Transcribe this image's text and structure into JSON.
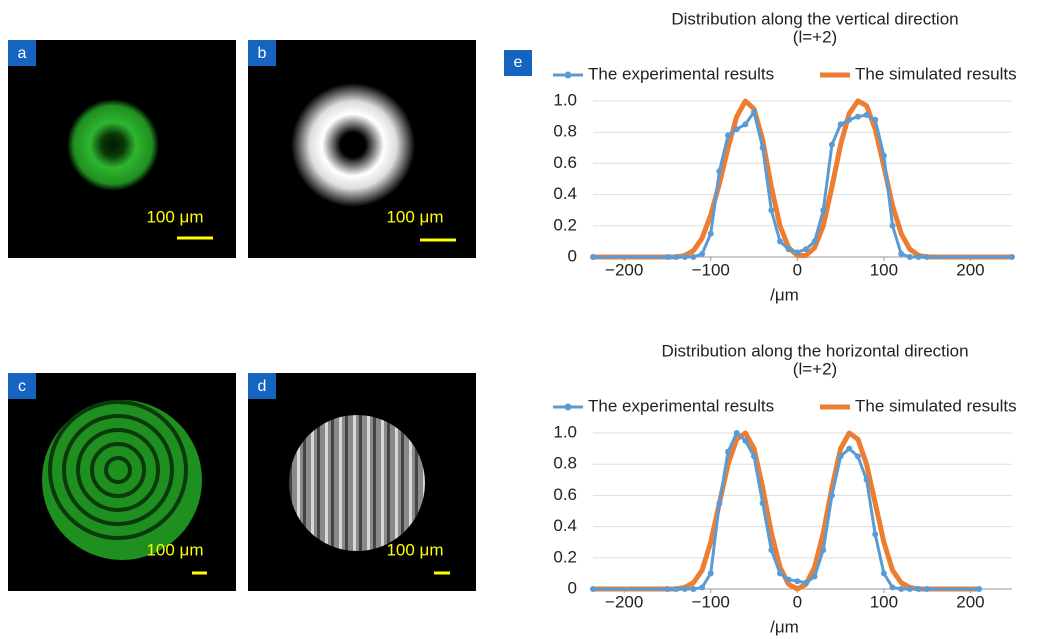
{
  "panels": [
    {
      "label": "a",
      "scale_bar": "100 μm"
    },
    {
      "label": "b",
      "scale_bar": "100 μm"
    },
    {
      "label": "c",
      "scale_bar": "100 μm"
    },
    {
      "label": "d",
      "scale_bar": "100 μm"
    },
    {
      "label": "e"
    }
  ],
  "chart_data": [
    {
      "type": "line",
      "title": "Distribution along the vertical direction",
      "subtitle": "(l=+2)",
      "x_label": "/μm",
      "x": [
        -236,
        -150,
        -140,
        -130,
        -120,
        -110,
        -100,
        -90,
        -80,
        -70,
        -60,
        -50,
        -40,
        -30,
        -20,
        -10,
        0,
        10,
        20,
        30,
        40,
        50,
        60,
        70,
        80,
        90,
        100,
        110,
        120,
        130,
        140,
        150,
        248
      ],
      "series": [
        {
          "name": "The experimental results",
          "color": "#5b9bd5",
          "values": [
            0,
            0,
            0,
            0,
            0,
            0.02,
            0.15,
            0.55,
            0.78,
            0.82,
            0.85,
            0.93,
            0.7,
            0.3,
            0.1,
            0.05,
            0.03,
            0.05,
            0.1,
            0.3,
            0.72,
            0.85,
            0.88,
            0.9,
            0.91,
            0.88,
            0.65,
            0.2,
            0.02,
            0,
            0,
            0,
            0
          ]
        },
        {
          "name": "The simulated results",
          "color": "#ed7d31",
          "values": [
            0,
            0,
            0,
            0.01,
            0.04,
            0.12,
            0.27,
            0.47,
            0.7,
            0.9,
            1.0,
            0.95,
            0.75,
            0.45,
            0.2,
            0.06,
            0.01,
            0.01,
            0.06,
            0.2,
            0.45,
            0.72,
            0.92,
            1.0,
            0.97,
            0.82,
            0.58,
            0.33,
            0.15,
            0.05,
            0.01,
            0,
            0
          ]
        }
      ],
      "xlim": [
        -236,
        248
      ],
      "ylim": [
        0,
        1
      ],
      "xticks": [
        {
          "value": -200,
          "label": "−200"
        },
        {
          "value": -100,
          "label": "−100"
        },
        0,
        100,
        200
      ],
      "yticks": [
        0,
        0.2,
        0.4,
        0.6,
        0.8,
        {
          "value": 1,
          "label": "1.0"
        }
      ],
      "grid": true,
      "legend": "top"
    },
    {
      "type": "line",
      "title": "Distribution along the horizontal direction",
      "subtitle": "(l=+2)",
      "x_label": "/μm",
      "x": [
        -236,
        -150,
        -140,
        -130,
        -120,
        -110,
        -100,
        -90,
        -80,
        -70,
        -60,
        -50,
        -40,
        -30,
        -20,
        -10,
        0,
        10,
        20,
        30,
        40,
        50,
        60,
        70,
        80,
        90,
        100,
        110,
        120,
        130,
        140,
        150,
        210
      ],
      "series": [
        {
          "name": "The experimental results",
          "color": "#5b9bd5",
          "values": [
            0,
            0,
            0,
            0,
            0,
            0.01,
            0.1,
            0.55,
            0.88,
            1.0,
            0.95,
            0.85,
            0.55,
            0.25,
            0.1,
            0.06,
            0.05,
            0.04,
            0.08,
            0.25,
            0.6,
            0.85,
            0.9,
            0.85,
            0.7,
            0.35,
            0.1,
            0.01,
            0,
            0,
            0,
            0,
            0
          ]
        },
        {
          "name": "The simulated results",
          "color": "#ed7d31",
          "values": [
            0,
            0,
            0,
            0.01,
            0.04,
            0.12,
            0.3,
            0.55,
            0.8,
            0.96,
            1.0,
            0.9,
            0.65,
            0.36,
            0.14,
            0.03,
            0,
            0.03,
            0.14,
            0.36,
            0.65,
            0.9,
            1.0,
            0.96,
            0.8,
            0.55,
            0.3,
            0.12,
            0.04,
            0.01,
            0,
            0,
            0
          ]
        }
      ],
      "xlim": [
        -236,
        248
      ],
      "ylim": [
        0,
        1
      ],
      "xticks": [
        {
          "value": -200,
          "label": "−200"
        },
        {
          "value": -100,
          "label": "−100"
        },
        0,
        100,
        200
      ],
      "yticks": [
        0,
        0.2,
        0.4,
        0.6,
        0.8,
        {
          "value": 1,
          "label": "1.0"
        }
      ],
      "grid": true,
      "legend": "top"
    }
  ]
}
